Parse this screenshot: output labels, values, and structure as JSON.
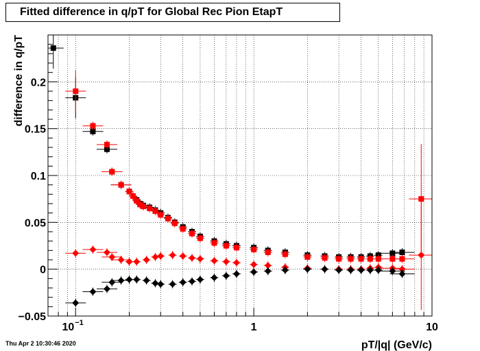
{
  "chart_data": {
    "type": "scatter",
    "title": "Fitted difference in q/pT for Global Rec Pion EtapT",
    "xlabel": "pT/|q| (GeV/c)",
    "ylabel": "difference in q/pT",
    "xscale": "log",
    "xlim": [
      0.07,
      10
    ],
    "ylim": [
      -0.05,
      0.25
    ],
    "grid": true,
    "x_tick_labels": [
      {
        "value": 0.1,
        "base": "10",
        "exp": "−1"
      },
      {
        "value": 1,
        "base": "1",
        "exp": ""
      },
      {
        "value": 10,
        "base": "10",
        "exp": ""
      }
    ],
    "y_ticks": [
      -0.05,
      0,
      0.05,
      0.1,
      0.15,
      0.2
    ],
    "y_tick_labels": [
      "−0.05",
      "0",
      "0.05",
      "0.1",
      "0.15",
      "0.2"
    ],
    "series": [
      {
        "color": "#000000",
        "marker": "square",
        "x": [
          0.075,
          0.1,
          0.125,
          0.15,
          0.16,
          0.18,
          0.2,
          0.21,
          0.22,
          0.23,
          0.24,
          0.26,
          0.28,
          0.3,
          0.33,
          0.36,
          0.4,
          0.45,
          0.5,
          0.6,
          0.7,
          0.8,
          1.0,
          1.2,
          1.5,
          2.0,
          2.5,
          3.0,
          3.5,
          4.0,
          4.5,
          5.0,
          6.0,
          6.8
        ],
        "y": [
          0.236,
          0.183,
          0.147,
          0.128,
          0.104,
          0.09,
          0.083,
          0.078,
          0.074,
          0.07,
          0.068,
          0.066,
          0.063,
          0.06,
          0.055,
          0.05,
          0.045,
          0.04,
          0.035,
          0.03,
          0.027,
          0.025,
          0.023,
          0.02,
          0.018,
          0.015,
          0.014,
          0.013,
          0.013,
          0.013,
          0.014,
          0.015,
          0.017,
          0.018
        ]
      },
      {
        "color": "#ff0000",
        "marker": "square",
        "x": [
          0.1,
          0.125,
          0.15,
          0.16,
          0.18,
          0.2,
          0.21,
          0.22,
          0.23,
          0.24,
          0.26,
          0.28,
          0.3,
          0.33,
          0.36,
          0.4,
          0.45,
          0.5,
          0.6,
          0.7,
          0.8,
          1.0,
          1.2,
          1.5,
          2.0,
          2.5,
          3.0,
          3.5,
          4.0,
          4.5,
          5.0,
          6.0,
          6.8,
          8.7
        ],
        "y": [
          0.19,
          0.153,
          0.133,
          0.104,
          0.09,
          0.083,
          0.078,
          0.073,
          0.069,
          0.067,
          0.065,
          0.062,
          0.058,
          0.054,
          0.049,
          0.043,
          0.038,
          0.033,
          0.028,
          0.025,
          0.023,
          0.021,
          0.018,
          0.016,
          0.013,
          0.012,
          0.011,
          0.011,
          0.011,
          0.011,
          0.011,
          0.011,
          0.011,
          0.075
        ]
      },
      {
        "color": "#ff0000",
        "marker": "diamond",
        "x": [
          0.1,
          0.125,
          0.15,
          0.16,
          0.18,
          0.2,
          0.22,
          0.25,
          0.28,
          0.3,
          0.35,
          0.4,
          0.45,
          0.5,
          0.6,
          0.7,
          0.8,
          1.0,
          1.2,
          1.5,
          2.0,
          2.5,
          3.0,
          3.5,
          4.0,
          4.5,
          5.0,
          6.0,
          6.8,
          8.7
        ],
        "y": [
          0.017,
          0.021,
          0.018,
          0.013,
          0.01,
          0.008,
          0.008,
          0.01,
          0.013,
          0.014,
          0.015,
          0.014,
          0.012,
          0.011,
          0.009,
          0.008,
          0.007,
          0.005,
          0.004,
          0.002,
          0.001,
          0.0,
          0.0,
          0.0,
          0.0,
          0.001,
          0.002,
          0.001,
          0.0,
          0.015
        ]
      },
      {
        "color": "#000000",
        "marker": "diamond",
        "x": [
          0.1,
          0.125,
          0.15,
          0.16,
          0.18,
          0.2,
          0.22,
          0.25,
          0.28,
          0.3,
          0.35,
          0.4,
          0.45,
          0.5,
          0.6,
          0.7,
          0.8,
          1.0,
          1.2,
          1.5,
          2.0,
          2.5,
          3.0,
          3.5,
          4.0,
          4.5,
          5.0,
          6.0,
          6.8
        ],
        "y": [
          -0.036,
          -0.024,
          -0.021,
          -0.014,
          -0.012,
          -0.011,
          -0.011,
          -0.012,
          -0.015,
          -0.016,
          -0.016,
          -0.014,
          -0.013,
          -0.011,
          -0.009,
          -0.007,
          -0.005,
          -0.003,
          -0.002,
          -0.001,
          0.0,
          0.0,
          -0.001,
          -0.001,
          -0.001,
          -0.001,
          -0.001,
          -0.002,
          -0.005
        ]
      }
    ]
  },
  "timestamp": "Thu Apr  2 10:30:46 2020"
}
